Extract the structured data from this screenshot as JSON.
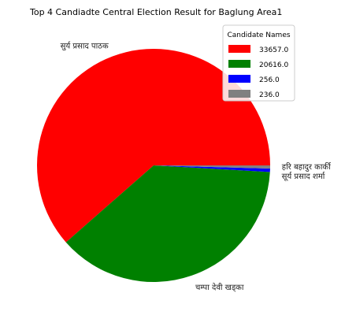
{
  "chart_data": {
    "type": "pie",
    "title": "Top 4 Candiadte Central Election Result for Baglung Area1",
    "labels": [
      "सुर्य प्रसाद पाठक",
      "चम्पा देवी खड्का",
      "सूर्य प्रसाद शर्मा",
      "हरि बहादुर कार्की"
    ],
    "values": [
      33657.0,
      20616.0,
      256.0,
      236.0
    ],
    "colors": [
      "#ff0000",
      "#008000",
      "#0000ff",
      "#808080"
    ],
    "legend": {
      "title": "Candidate Names",
      "entries": [
        "33657.0",
        "20616.0",
        "256.0",
        "236.0"
      ],
      "placement": "top-right"
    }
  }
}
